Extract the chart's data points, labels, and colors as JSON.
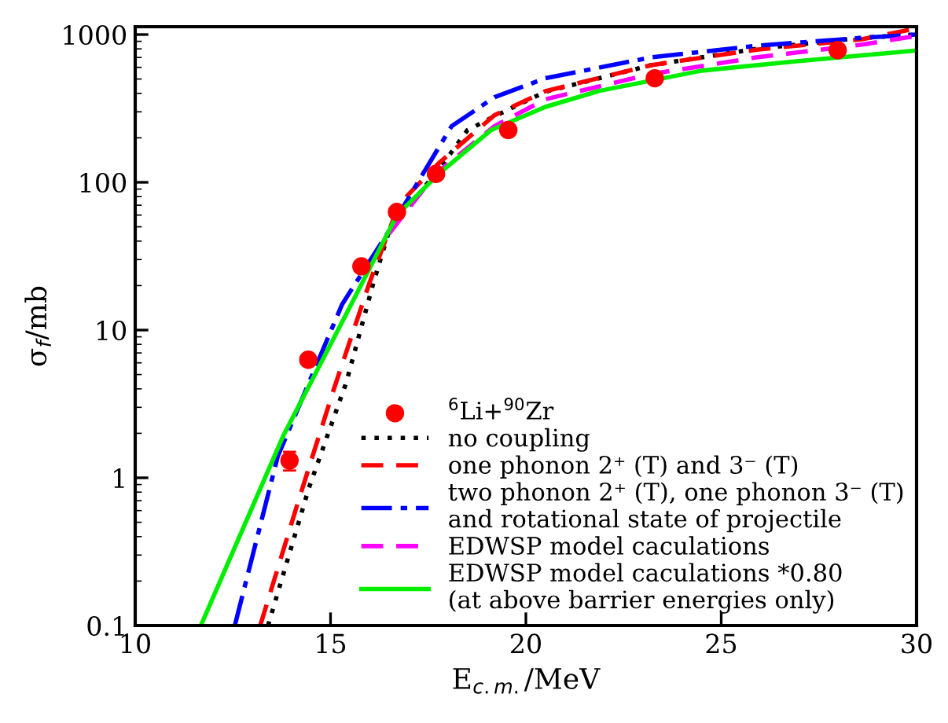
{
  "chart_data": {
    "type": "line",
    "xlabel": "E$_{c.m.}$/MeV",
    "ylabel": "σ$_{f}$/mb",
    "log": "y",
    "xlim": [
      10,
      30
    ],
    "xticks": [
      10,
      15,
      20,
      25,
      30
    ],
    "ylim": [
      0.1,
      1130
    ],
    "yticks": [
      0.1,
      1,
      10,
      100,
      1000
    ],
    "grid": false,
    "legend": "bottom right",
    "series": [
      {
        "name": "$^{6}$Li+$^{90}$Zr",
        "type": "scatter",
        "marker": "circle",
        "color": "#ff0000",
        "x": [
          13.95,
          14.43,
          15.79,
          16.7,
          17.7,
          19.55,
          23.3,
          27.98
        ],
        "values": [
          1.31,
          6.3,
          27,
          63,
          114,
          226,
          506,
          785
        ],
        "errors": [
          [
            1.12,
            1.5
          ],
          null,
          null,
          null,
          null,
          null,
          null,
          null
        ]
      },
      {
        "name": "no coupling",
        "color": "#000000",
        "line_style": "dotted",
        "x": [
          13.4,
          14.45,
          15.4,
          16.1,
          16.5,
          17.8,
          18.5,
          19.2,
          20.5,
          23.2,
          25.9,
          28.6,
          30
        ],
        "values": [
          0.1,
          0.86,
          4.4,
          21,
          47,
          125,
          225,
          280,
          410,
          620,
          800,
          950,
          1000
        ]
      },
      {
        "name": "one phonon 2⁺ (T) and 3⁻ (T)",
        "color": "#ff0000",
        "line_style": "dashed",
        "x": [
          13.2,
          14.2,
          15.1,
          16.0,
          16.75,
          17.8,
          19.2,
          20.5,
          23.2,
          25.9,
          28.6,
          30
        ],
        "values": [
          0.1,
          0.73,
          4.1,
          21,
          71,
          137,
          285,
          414,
          620,
          790,
          930,
          1100
        ]
      },
      {
        "name": "two phonon 2⁺ (T), one phonon 3⁻ (T)\nand rotational state of projectile",
        "color": "#0000ff",
        "line_style": "dashdot",
        "x": [
          12.55,
          13.65,
          15.3,
          16.5,
          17.3,
          18.1,
          19.2,
          20.5,
          23.2,
          25.9,
          28.6,
          30
        ],
        "values": [
          0.1,
          1.4,
          15,
          47,
          107,
          240,
          377,
          506,
          700,
          840,
          950,
          1000
        ]
      },
      {
        "name": "EDWSP model caculations",
        "color": "#ff00ff",
        "line_style": "dashed",
        "x": [
          16.5,
          17.7,
          19.2,
          20.5,
          23.2,
          25.9,
          28.6,
          30
        ],
        "values": [
          45,
          115,
          240,
          365,
          540,
          700,
          855,
          980
        ]
      },
      {
        "name": "EDWSP model caculations *0.80\n(at above barrier energies only)",
        "color": "#00ee00",
        "line_style": "solid",
        "x": [
          11.68,
          13.8,
          15.4,
          16.7,
          17.8,
          19.1,
          20.5,
          21.85,
          24.5,
          27.2,
          30
        ],
        "values": [
          0.1,
          1.95,
          12.8,
          60,
          116,
          225,
          324,
          414,
          570,
          670,
          780
        ]
      }
    ]
  }
}
